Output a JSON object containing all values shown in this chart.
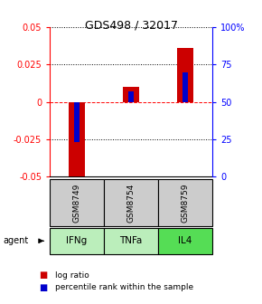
{
  "title": "GDS498 / 32017",
  "samples": [
    "GSM8749",
    "GSM8754",
    "GSM8759"
  ],
  "agents": [
    "IFNg",
    "TNFa",
    "IL4"
  ],
  "log_ratios": [
    -0.053,
    0.01,
    0.036
  ],
  "percentile_ranks": [
    23,
    57,
    70
  ],
  "ylim": [
    -0.05,
    0.05
  ],
  "percentile_ylim": [
    0,
    100
  ],
  "yticks_left": [
    -0.05,
    -0.025,
    0,
    0.025,
    0.05
  ],
  "yticks_right": [
    0,
    25,
    50,
    75,
    100
  ],
  "bar_color_red": "#cc0000",
  "bar_color_blue": "#0000cc",
  "sample_box_color": "#cccccc",
  "agent_color_light": "#bbeebb",
  "agent_color_dark": "#55dd55",
  "legend_red": "log ratio",
  "legend_blue": "percentile rank within the sample",
  "bar_width": 0.3,
  "blue_bar_width": 0.1,
  "title_fontsize": 9,
  "tick_fontsize": 7,
  "label_fontsize": 7,
  "legend_fontsize": 6.5
}
